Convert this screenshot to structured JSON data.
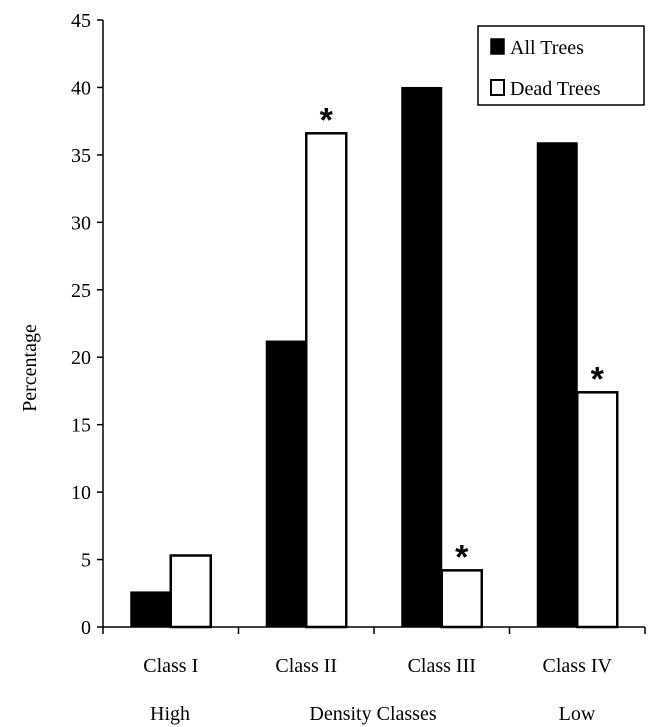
{
  "chart_data": {
    "type": "bar",
    "categories": [
      "Class I",
      "Class II",
      "Class III",
      "Class IV"
    ],
    "series": [
      {
        "name": "All Trees",
        "values": [
          2.6,
          21.2,
          40.0,
          35.9
        ],
        "color": "#000000"
      },
      {
        "name": "Dead Trees",
        "values": [
          5.3,
          36.6,
          4.2,
          17.4
        ],
        "color": "#ffffff"
      }
    ],
    "significance_marks": [
      {
        "category": "Class II",
        "series": "Dead Trees",
        "label": "*"
      },
      {
        "category": "Class III",
        "series": "Dead Trees",
        "label": "*"
      },
      {
        "category": "Class IV",
        "series": "Dead Trees",
        "label": "*"
      }
    ],
    "title": "",
    "xlabel": "Density Classes",
    "x_end_labels": {
      "left": "High",
      "right": "Low"
    },
    "ylabel": "Percentage",
    "ylim": [
      0,
      45
    ],
    "yticks": [
      0,
      5,
      10,
      15,
      20,
      25,
      30,
      35,
      40,
      45
    ],
    "grid": false,
    "legend_position": "top-right"
  }
}
